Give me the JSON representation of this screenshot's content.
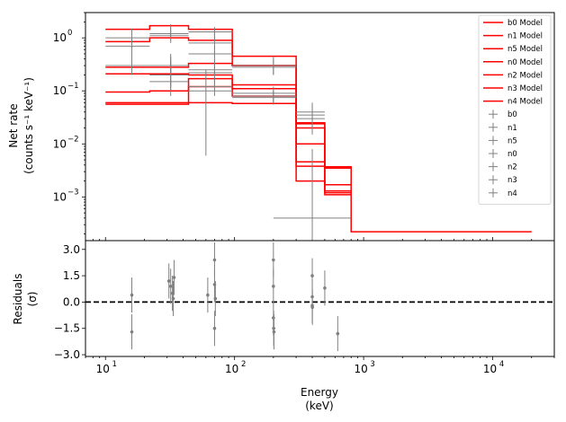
{
  "chart_data": {
    "type": "line",
    "top_panel": {
      "ylabel_line1": "Net rate",
      "ylabel_line2": "(counts s⁻¹ keV⁻¹)",
      "yscale": "log",
      "ylim": [
        0.00015,
        3.0
      ],
      "yticks": [
        {
          "value": 0.001,
          "base": "10",
          "exp": "−3"
        },
        {
          "value": 0.01,
          "base": "10",
          "exp": "−2"
        },
        {
          "value": 0.1,
          "base": "10",
          "exp": "−1"
        },
        {
          "value": 1,
          "base": "10",
          "exp": "0"
        }
      ],
      "legend_position": "upper right",
      "models": [
        {
          "name": "b0 Model",
          "bins": [
            [
              10,
              22,
              1.45
            ],
            [
              22,
              44,
              1.7
            ],
            [
              44,
              96,
              1.45
            ],
            [
              96,
              300,
              0.45
            ],
            [
              300,
              500,
              0.0038
            ],
            [
              500,
              800,
              0.0037
            ],
            [
              800,
              20000,
              0.00022
            ]
          ]
        },
        {
          "name": "n1 Model",
          "bins": [
            [
              10,
              22,
              0.85
            ],
            [
              22,
              44,
              1.0
            ],
            [
              44,
              96,
              0.9
            ],
            [
              96,
              300,
              0.3
            ],
            [
              300,
              500,
              0.025
            ],
            [
              500,
              800,
              0.0013
            ]
          ]
        },
        {
          "name": "n5 Model",
          "bins": [
            [
              10,
              22,
              0.28
            ],
            [
              22,
              44,
              0.28
            ],
            [
              44,
              96,
              0.33
            ],
            [
              96,
              300,
              0.3
            ],
            [
              300,
              500,
              0.01
            ],
            [
              500,
              800,
              0.0011
            ]
          ]
        },
        {
          "name": "n0 Model",
          "bins": [
            [
              10,
              22,
              0.21
            ],
            [
              22,
              44,
              0.21
            ],
            [
              44,
              96,
              0.2
            ],
            [
              96,
              300,
              0.13
            ],
            [
              300,
              500,
              0.02
            ],
            [
              500,
              800,
              0.0017
            ]
          ]
        },
        {
          "name": "n2 Model",
          "bins": [
            [
              10,
              22,
              0.095
            ],
            [
              22,
              44,
              0.1
            ],
            [
              44,
              96,
              0.12
            ],
            [
              96,
              300,
              0.11
            ],
            [
              300,
              500,
              0.0046
            ],
            [
              500,
              800,
              0.0035
            ]
          ]
        },
        {
          "name": "n3 Model",
          "bins": [
            [
              10,
              22,
              0.06
            ],
            [
              22,
              44,
              0.06
            ],
            [
              44,
              96,
              0.17
            ],
            [
              96,
              300,
              0.08
            ],
            [
              300,
              500,
              0.024
            ],
            [
              500,
              800,
              0.0037
            ]
          ]
        },
        {
          "name": "n4 Model",
          "bins": [
            [
              10,
              22,
              0.056
            ],
            [
              22,
              44,
              0.056
            ],
            [
              44,
              96,
              0.06
            ],
            [
              96,
              300,
              0.058
            ],
            [
              300,
              500,
              0.002
            ],
            [
              500,
              800,
              0.0012
            ]
          ]
        }
      ],
      "data_series": [
        {
          "name": "b0",
          "points": [
            {
              "x": 32,
              "x_lo": 22,
              "x_hi": 44,
              "y": 1.1,
              "y_lo": 0.8,
              "y_hi": 1.6
            },
            {
              "x": 70,
              "x_lo": 44,
              "x_hi": 96,
              "y": 0.8,
              "y_lo": 0.45,
              "y_hi": 1.5
            },
            {
              "x": 200,
              "x_lo": 96,
              "x_hi": 300,
              "y": 0.28,
              "y_lo": 0.2,
              "y_hi": 0.4
            },
            {
              "x": 400,
              "x_lo": 300,
              "x_hi": 500,
              "y": 0.04,
              "y_lo": 0.02,
              "y_hi": 0.06
            },
            {
              "x": 400,
              "x_lo": 200,
              "x_hi": 800,
              "y": 0.0004,
              "y_lo": 0.00015,
              "y_hi": 0.008
            }
          ]
        },
        {
          "name": "n1",
          "points": [
            {
              "x": 16,
              "x_lo": 10,
              "x_hi": 22,
              "y": 1.0,
              "y_lo": 0.6,
              "y_hi": 1.5
            },
            {
              "x": 32,
              "x_lo": 22,
              "x_hi": 44,
              "y": 1.2,
              "y_lo": 0.9,
              "y_hi": 1.8
            },
            {
              "x": 70,
              "x_lo": 44,
              "x_hi": 96,
              "y": 1.3,
              "y_lo": 0.9,
              "y_hi": 1.6
            }
          ]
        },
        {
          "name": "n5",
          "points": [
            {
              "x": 16,
              "x_lo": 10,
              "x_hi": 22,
              "y": 0.7,
              "y_lo": 0.3,
              "y_hi": 1.1
            },
            {
              "x": 32,
              "x_lo": 22,
              "x_hi": 44,
              "y": 0.3,
              "y_lo": 0.2,
              "y_hi": 0.5
            },
            {
              "x": 70,
              "x_lo": 44,
              "x_hi": 96,
              "y": 0.5,
              "y_lo": 0.3,
              "y_hi": 0.7
            }
          ]
        },
        {
          "name": "n0",
          "points": [
            {
              "x": 16,
              "x_lo": 10,
              "x_hi": 22,
              "y": 0.3,
              "y_lo": 0.2,
              "y_hi": 0.5
            },
            {
              "x": 32,
              "x_lo": 22,
              "x_hi": 44,
              "y": 0.2,
              "y_lo": 0.12,
              "y_hi": 0.35
            },
            {
              "x": 70,
              "x_lo": 44,
              "x_hi": 96,
              "y": 0.22,
              "y_lo": 0.12,
              "y_hi": 0.35
            },
            {
              "x": 200,
              "x_lo": 96,
              "x_hi": 300,
              "y": 0.3,
              "y_lo": 0.2,
              "y_hi": 0.45
            }
          ]
        },
        {
          "name": "n2",
          "points": [
            {
              "x": 32,
              "x_lo": 22,
              "x_hi": 44,
              "y": 0.15,
              "y_lo": 0.08,
              "y_hi": 0.3
            },
            {
              "x": 60,
              "x_lo": 44,
              "x_hi": 96,
              "y": 0.1,
              "y_lo": 0.006,
              "y_hi": 0.25
            },
            {
              "x": 200,
              "x_lo": 96,
              "x_hi": 300,
              "y": 0.09,
              "y_lo": 0.06,
              "y_hi": 0.12
            }
          ]
        },
        {
          "name": "n3",
          "points": [
            {
              "x": 32,
              "x_lo": 22,
              "x_hi": 44,
              "y": 0.2,
              "y_lo": 0.1,
              "y_hi": 0.4
            },
            {
              "x": 70,
              "x_lo": 44,
              "x_hi": 96,
              "y": 0.25,
              "y_lo": 0.12,
              "y_hi": 0.4
            },
            {
              "x": 200,
              "x_lo": 96,
              "x_hi": 300,
              "y": 0.08,
              "y_lo": 0.06,
              "y_hi": 0.1
            },
            {
              "x": 400,
              "x_lo": 300,
              "x_hi": 500,
              "y": 0.03,
              "y_lo": 0.015,
              "y_hi": 0.045
            }
          ]
        },
        {
          "name": "n4",
          "points": [
            {
              "x": 32,
              "x_lo": 22,
              "x_hi": 44,
              "y": 0.3,
              "y_lo": 0.2,
              "y_hi": 0.45
            },
            {
              "x": 70,
              "x_lo": 44,
              "x_hi": 96,
              "y": 0.12,
              "y_lo": 0.08,
              "y_hi": 0.18
            },
            {
              "x": 200,
              "x_lo": 96,
              "x_hi": 300,
              "y": 0.075,
              "y_lo": 0.055,
              "y_hi": 0.1
            },
            {
              "x": 400,
              "x_lo": 300,
              "x_hi": 500,
              "y": 0.035,
              "y_lo": 0.02,
              "y_hi": 0.05
            }
          ]
        }
      ]
    },
    "bottom_panel": {
      "ylabel_line1": "Residuals",
      "ylabel_line2": "(σ)",
      "ylim": [
        -3.1,
        3.5
      ],
      "yticks": [
        {
          "value": -3.0,
          "label": "−3.0"
        },
        {
          "value": -1.5,
          "label": "−1.5"
        },
        {
          "value": 0.0,
          "label": "0.0"
        },
        {
          "value": 1.5,
          "label": "1.5"
        },
        {
          "value": 3.0,
          "label": "3.0"
        }
      ],
      "reference_line": {
        "y": 0,
        "style": "dashed"
      },
      "points": [
        {
          "x": 16,
          "y": 0.4,
          "y_lo": -0.6,
          "y_hi": 1.4
        },
        {
          "x": 16,
          "y": -1.7,
          "y_lo": -2.7,
          "y_hi": -0.7
        },
        {
          "x": 31,
          "y": 1.2,
          "y_lo": 0.2,
          "y_hi": 2.2
        },
        {
          "x": 32,
          "y": 0.9,
          "y_lo": -0.1,
          "y_hi": 1.9
        },
        {
          "x": 33,
          "y": 0.5,
          "y_lo": -0.5,
          "y_hi": 1.5
        },
        {
          "x": 33.5,
          "y": 0.2,
          "y_lo": -0.8,
          "y_hi": 1.2
        },
        {
          "x": 34,
          "y": 1.4,
          "y_lo": 0.4,
          "y_hi": 2.4
        },
        {
          "x": 62,
          "y": 0.4,
          "y_lo": -0.6,
          "y_hi": 1.4
        },
        {
          "x": 70,
          "y": 2.4,
          "y_lo": 1.4,
          "y_hi": 3.4
        },
        {
          "x": 70,
          "y": 1.0,
          "y_lo": 0.0,
          "y_hi": 2.0
        },
        {
          "x": 70,
          "y": -1.5,
          "y_lo": -2.5,
          "y_hi": -0.5
        },
        {
          "x": 71,
          "y": 0.2,
          "y_lo": -0.8,
          "y_hi": 1.2
        },
        {
          "x": 200,
          "y": 2.4,
          "y_lo": 1.4,
          "y_hi": 3.4
        },
        {
          "x": 200,
          "y": 0.9,
          "y_lo": -0.1,
          "y_hi": 1.9
        },
        {
          "x": 200,
          "y": -0.9,
          "y_lo": -1.9,
          "y_hi": 0.1
        },
        {
          "x": 201,
          "y": -1.5,
          "y_lo": -2.5,
          "y_hi": -0.5
        },
        {
          "x": 202,
          "y": -1.7,
          "y_lo": -2.7,
          "y_hi": -0.7
        },
        {
          "x": 400,
          "y": 1.5,
          "y_lo": 0.5,
          "y_hi": 2.5
        },
        {
          "x": 400,
          "y": 0.3,
          "y_lo": -0.7,
          "y_hi": 1.3
        },
        {
          "x": 400,
          "y": -0.2,
          "y_lo": -1.2,
          "y_hi": 0.8
        },
        {
          "x": 401,
          "y": -0.3,
          "y_lo": -1.3,
          "y_hi": 0.7
        },
        {
          "x": 500,
          "y": 0.8,
          "y_lo": -0.2,
          "y_hi": 1.8
        },
        {
          "x": 630,
          "y": -1.8,
          "y_lo": -2.8,
          "y_hi": -0.8
        }
      ]
    },
    "xaxis": {
      "xlabel_line1": "Energy",
      "xlabel_line2": "(keV)",
      "xscale": "log",
      "xlim": [
        7,
        30000
      ],
      "xticks": [
        {
          "value": 10,
          "base": "10",
          "exp": "1"
        },
        {
          "value": 100,
          "base": "10",
          "exp": "2"
        },
        {
          "value": 1000,
          "base": "10",
          "exp": "3"
        },
        {
          "value": 10000,
          "base": "10",
          "exp": "4"
        }
      ]
    },
    "colors": {
      "model": "#ff0000",
      "data": "#808080",
      "reference": "#000000"
    }
  }
}
